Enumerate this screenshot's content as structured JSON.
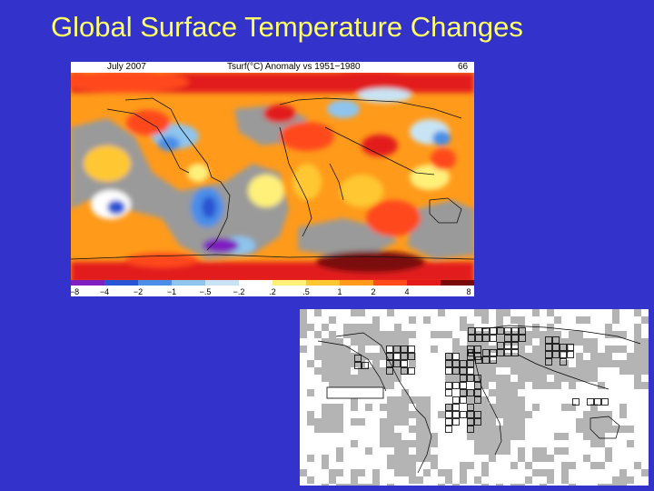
{
  "slide": {
    "title": "Global Surface Temperature Changes"
  },
  "anomaly_map": {
    "date_label": "July 2007",
    "variable_label": "Tsurf(°C)  Anomaly  vs  1951−1980",
    "global_value": "66",
    "colorbar": {
      "tick_labels": [
        "−8",
        "−4",
        "−2",
        "−1",
        "−.5",
        "−.2",
        ".2",
        ".5",
        "1",
        "2",
        "4",
        "8"
      ],
      "colors": [
        "#7f1fbf",
        "#2a55d4",
        "#4a8ee8",
        "#8ec4ee",
        "#c8e4f4",
        "#ffffff",
        "#fff07a",
        "#ffc830",
        "#ff9a1a",
        "#ff4a1a",
        "#e21a1a",
        "#7a0a0a"
      ]
    },
    "colors": {
      "missing_data": "#9a9a9a",
      "coast": "#111111"
    }
  },
  "coverage_map": {
    "colors": {
      "covered": "#b4b4b4",
      "grid": "#000000",
      "background": "#ffffff"
    }
  }
}
